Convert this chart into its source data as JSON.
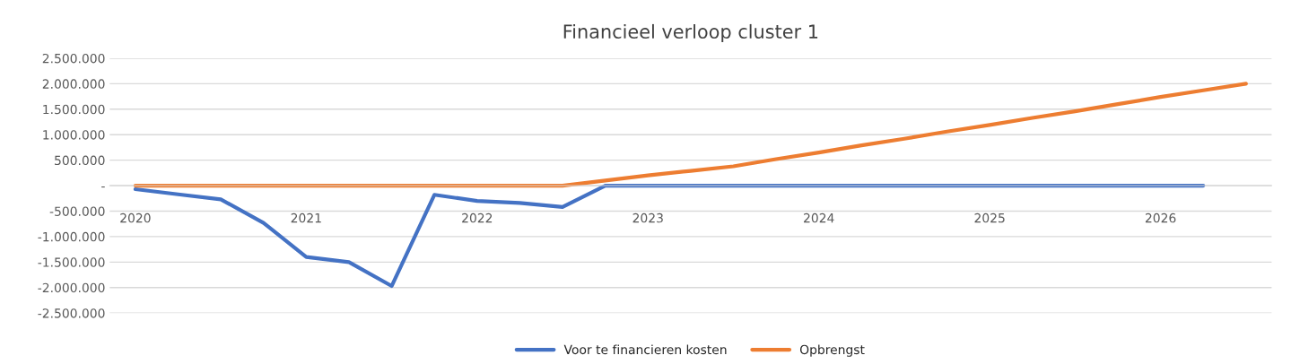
{
  "chart_data": {
    "type": "line",
    "title": "Financieel verloop cluster 1",
    "categories": [
      "2020",
      null,
      null,
      null,
      "2021",
      null,
      null,
      null,
      "2022",
      null,
      null,
      null,
      "2023",
      null,
      null,
      null,
      "2024",
      null,
      null,
      null,
      "2025",
      null,
      null,
      null,
      "2026",
      null,
      null
    ],
    "series": [
      {
        "name": "Voor te financieren kosten",
        "color": "#4472c4",
        "values": [
          -70000,
          -170000,
          -270000,
          -730000,
          -1400000,
          -1500000,
          -1970000,
          -180000,
          -300000,
          -340000,
          -420000,
          0,
          0,
          0,
          0,
          0,
          0,
          0,
          0,
          0,
          0,
          0,
          0,
          0,
          0,
          0,
          null
        ]
      },
      {
        "name": "Opbrengst",
        "color": "#ed7d31",
        "values": [
          0,
          0,
          0,
          0,
          0,
          0,
          0,
          0,
          0,
          0,
          0,
          100000,
          200000,
          290000,
          380000,
          520000,
          650000,
          790000,
          920000,
          1060000,
          1190000,
          1330000,
          1460000,
          1600000,
          1740000,
          1870000,
          2000000
        ]
      }
    ],
    "ylim": [
      -2500000,
      2500000
    ],
    "yticks": [
      {
        "value": -2500000,
        "label": "-2.500.000"
      },
      {
        "value": -2000000,
        "label": "-2.000.000"
      },
      {
        "value": -1500000,
        "label": "-1.500.000"
      },
      {
        "value": -1000000,
        "label": "-1.000.000"
      },
      {
        "value": -500000,
        "label": "-500.000"
      },
      {
        "value": 0,
        "label": "-"
      },
      {
        "value": 500000,
        "label": "500.000"
      },
      {
        "value": 1000000,
        "label": "1.000.000"
      },
      {
        "value": 1500000,
        "label": "1.500.000"
      },
      {
        "value": 2000000,
        "label": "2.000.000"
      },
      {
        "value": 2500000,
        "label": "2.500.000"
      }
    ],
    "grid": "y",
    "legend": "bottom",
    "marker": "none",
    "line_style": "solid"
  }
}
